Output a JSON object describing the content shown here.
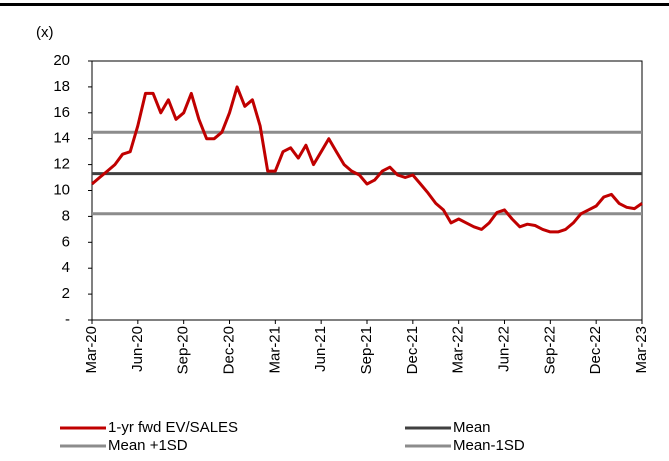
{
  "chart_data": {
    "type": "line",
    "y_label": "(x)",
    "categories": [
      "Mar-20",
      null,
      null,
      null,
      null,
      null,
      "Jun-20",
      null,
      null,
      null,
      null,
      null,
      "Sep-20",
      null,
      null,
      null,
      null,
      null,
      "Dec-20",
      null,
      null,
      null,
      null,
      null,
      "Mar-21",
      null,
      null,
      null,
      null,
      null,
      "Jun-21",
      null,
      null,
      null,
      null,
      null,
      "Sep-21",
      null,
      null,
      null,
      null,
      null,
      "Dec-21",
      null,
      null,
      null,
      null,
      null,
      "Mar-22",
      null,
      null,
      null,
      null,
      null,
      "Jun-22",
      null,
      null,
      null,
      null,
      null,
      "Sep-22",
      null,
      null,
      null,
      null,
      null,
      "Dec-22",
      null,
      null,
      null,
      null,
      null,
      "Mar-23"
    ],
    "series": [
      {
        "name": "1-yr fwd EV/SALES",
        "color": "#c00000",
        "values": [
          10.5,
          11.0,
          11.5,
          12.0,
          12.8,
          13.0,
          15.0,
          17.5,
          17.5,
          16.0,
          17.0,
          15.5,
          16.0,
          17.5,
          15.5,
          14.0,
          14.0,
          14.5,
          16.0,
          18.0,
          16.5,
          17.0,
          15.0,
          11.5,
          11.5,
          13.0,
          13.3,
          12.5,
          13.5,
          12.0,
          13.0,
          14.0,
          13.0,
          12.0,
          11.5,
          11.2,
          10.5,
          10.8,
          11.5,
          11.8,
          11.2,
          11.0,
          11.2,
          10.5,
          9.8,
          9.0,
          8.5,
          7.5,
          7.8,
          7.5,
          7.2,
          7.0,
          7.5,
          8.3,
          8.5,
          7.8,
          7.2,
          7.4,
          7.3,
          7.0,
          6.8,
          6.8,
          7.0,
          7.5,
          8.2,
          8.5,
          8.8,
          9.5,
          9.7,
          9.0,
          8.7,
          8.6,
          9.0
        ]
      }
    ],
    "reference_lines": [
      {
        "name": "Mean",
        "value": 11.3,
        "color": "#404040"
      },
      {
        "name": "Mean +1SD",
        "value": 14.5,
        "color": "#8c8c8c"
      },
      {
        "name": "Mean-1SD",
        "value": 8.2,
        "color": "#8c8c8c"
      }
    ],
    "ylim": [
      0,
      20
    ],
    "yticks": [
      {
        "value": 0,
        "label": "-"
      },
      2,
      4,
      6,
      8,
      10,
      12,
      14,
      16,
      18,
      20
    ]
  }
}
